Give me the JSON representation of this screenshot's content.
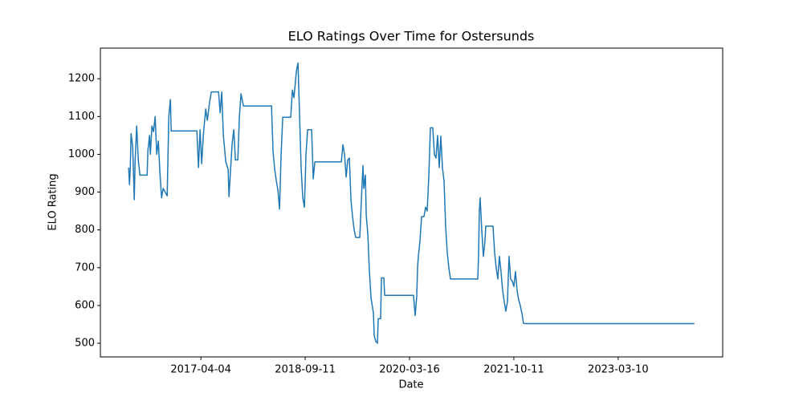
{
  "chart_data": {
    "type": "line",
    "title": "ELO Ratings Over Time for Ostersunds",
    "x_label": "Date",
    "y_label": "ELO Rating",
    "color": "#1f77b4",
    "x": [
      0,
      1,
      2,
      3,
      5,
      7,
      8,
      10,
      12,
      14,
      23,
      24,
      26,
      27,
      29,
      31,
      33,
      35,
      37,
      39,
      41,
      43,
      48,
      50,
      52,
      53,
      85,
      87,
      89,
      91,
      93,
      96,
      98,
      101,
      103,
      112,
      114,
      116,
      118,
      121,
      124,
      125,
      127,
      129,
      131,
      133,
      136,
      138,
      140,
      143,
      178,
      180,
      182,
      184,
      186,
      188,
      190,
      192,
      202,
      204,
      206,
      209,
      211,
      213,
      215,
      217,
      219,
      221,
      223,
      228,
      230,
      232,
      265,
      267,
      269,
      271,
      273,
      275,
      277,
      279,
      281,
      283,
      288,
      290,
      292,
      293,
      295,
      296,
      298,
      300,
      302,
      305,
      306,
      308,
      310,
      311,
      314,
      315,
      318,
      319,
      355,
      357,
      359,
      360,
      361,
      363,
      365,
      368,
      370,
      372,
      374,
      376,
      379,
      381,
      383,
      385,
      387,
      389,
      391,
      393,
      395,
      397,
      399,
      401,
      435,
      436,
      437,
      438,
      440,
      442,
      444,
      445,
      454,
      456,
      458,
      460,
      462,
      464,
      466,
      468,
      470,
      472,
      474,
      476,
      478,
      480,
      482,
      484,
      486,
      488,
      490,
      492,
      493,
      705
    ],
    "values": [
      965,
      920,
      965,
      1055,
      1020,
      880,
      980,
      1075,
      985,
      945,
      945,
      1010,
      1050,
      1000,
      1075,
      1060,
      1100,
      1000,
      1035,
      950,
      885,
      910,
      890,
      1100,
      1145,
      1062,
      1062,
      965,
      1065,
      975,
      1050,
      1120,
      1090,
      1140,
      1165,
      1165,
      1110,
      1165,
      1050,
      980,
      960,
      888,
      960,
      1030,
      1065,
      985,
      985,
      1100,
      1160,
      1128,
      1128,
      1005,
      960,
      930,
      905,
      855,
      1000,
      1098,
      1098,
      1170,
      1150,
      1220,
      1242,
      1100,
      960,
      885,
      860,
      1000,
      1065,
      1065,
      935,
      980,
      980,
      1025,
      1000,
      940,
      985,
      990,
      880,
      835,
      800,
      780,
      780,
      880,
      970,
      910,
      945,
      840,
      790,
      690,
      620,
      580,
      520,
      505,
      500,
      565,
      565,
      673,
      673,
      627,
      627,
      573,
      625,
      700,
      730,
      770,
      835,
      835,
      860,
      850,
      940,
      1070,
      1070,
      1000,
      990,
      1050,
      965,
      1048,
      965,
      930,
      810,
      740,
      700,
      670,
      670,
      730,
      850,
      885,
      800,
      730,
      770,
      810,
      810,
      740,
      700,
      670,
      730,
      690,
      640,
      610,
      585,
      610,
      730,
      670,
      665,
      650,
      690,
      640,
      615,
      600,
      580,
      553,
      552,
      552
    ],
    "xlim": [
      -35.25,
      740.25
    ],
    "xticks": [
      {
        "value": 90,
        "label": "2017-04-04"
      },
      {
        "value": 220,
        "label": "2018-09-11"
      },
      {
        "value": 350,
        "label": "2020-03-16"
      },
      {
        "value": 480,
        "label": "2021-10-11"
      },
      {
        "value": 610,
        "label": "2023-03-10"
      }
    ],
    "ylim": [
      464,
      1281
    ],
    "yticks": [
      500,
      600,
      700,
      800,
      900,
      1000,
      1100,
      1200
    ],
    "grid": false
  }
}
